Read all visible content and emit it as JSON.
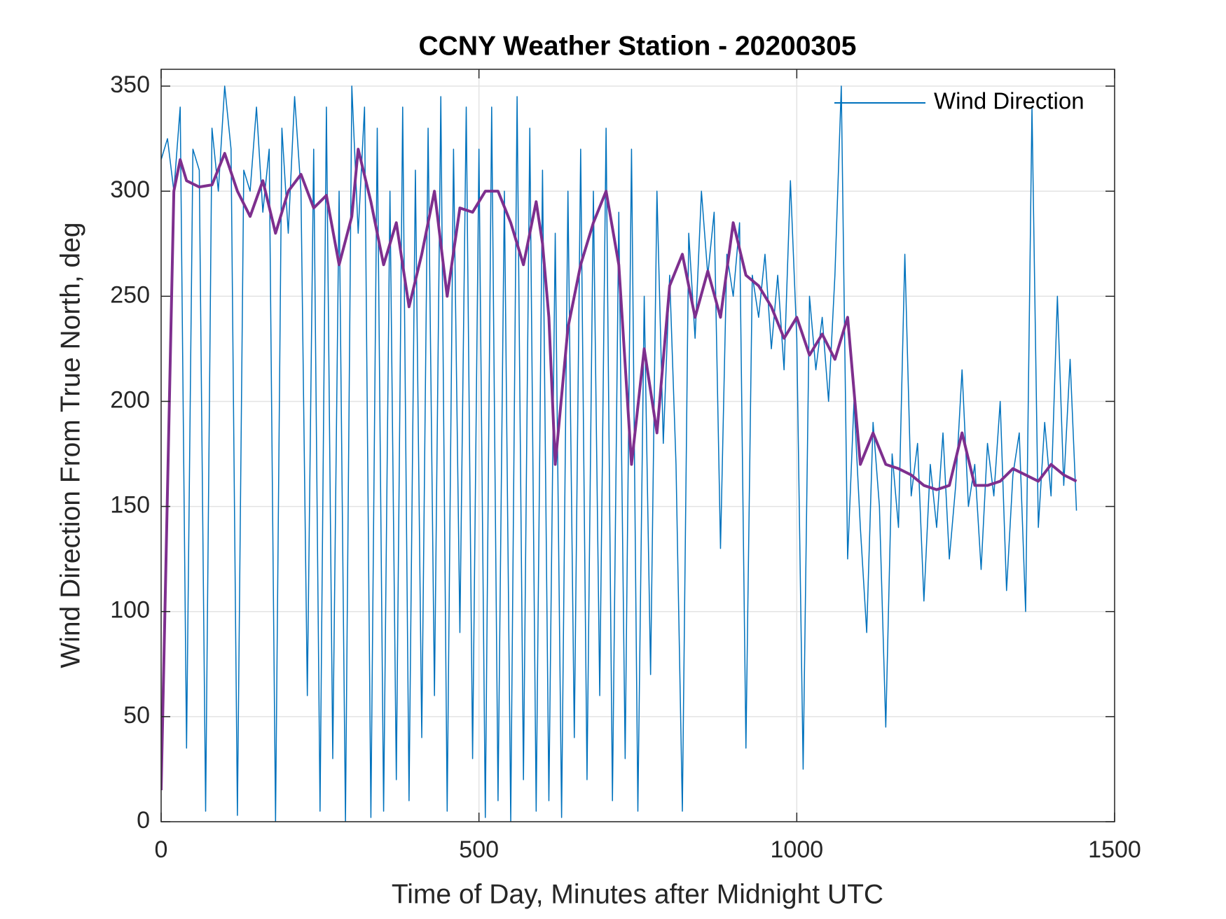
{
  "chart_data": {
    "type": "line",
    "title": "CCNY Weather Station - 20200305",
    "x_label": "Time of Day, Minutes after Midnight UTC",
    "y_label": "Wind Direction From True North, deg",
    "xlim": [
      0,
      1500
    ],
    "xticks": [
      0,
      500,
      1000,
      1500
    ],
    "ylim": [
      0,
      358
    ],
    "yticks": [
      0,
      50,
      100,
      150,
      200,
      250,
      300,
      350
    ],
    "grid": true,
    "legend_position": "upper right",
    "series": [
      {
        "name": "Wind Direction",
        "color": "#0072bd",
        "line_width": 1.5,
        "x": [
          0,
          10,
          20,
          30,
          40,
          50,
          60,
          70,
          80,
          90,
          100,
          110,
          120,
          130,
          140,
          150,
          160,
          170,
          180,
          190,
          200,
          210,
          220,
          230,
          240,
          250,
          260,
          270,
          280,
          290,
          300,
          310,
          320,
          330,
          340,
          350,
          360,
          370,
          380,
          390,
          400,
          410,
          420,
          430,
          440,
          450,
          460,
          470,
          480,
          490,
          500,
          510,
          520,
          530,
          540,
          550,
          560,
          570,
          580,
          590,
          600,
          610,
          620,
          630,
          640,
          650,
          660,
          670,
          680,
          690,
          700,
          710,
          720,
          730,
          740,
          750,
          760,
          770,
          780,
          790,
          800,
          810,
          820,
          830,
          840,
          850,
          860,
          870,
          880,
          890,
          900,
          910,
          920,
          930,
          940,
          950,
          960,
          970,
          980,
          990,
          1000,
          1010,
          1020,
          1030,
          1040,
          1050,
          1060,
          1070,
          1080,
          1090,
          1100,
          1110,
          1120,
          1130,
          1140,
          1150,
          1160,
          1170,
          1180,
          1190,
          1200,
          1210,
          1220,
          1230,
          1240,
          1250,
          1260,
          1270,
          1280,
          1290,
          1300,
          1310,
          1320,
          1330,
          1340,
          1350,
          1360,
          1370,
          1380,
          1390,
          1400,
          1410,
          1420,
          1430,
          1440
        ],
        "values": [
          315,
          325,
          300,
          340,
          35,
          320,
          310,
          5,
          330,
          300,
          350,
          320,
          3,
          310,
          300,
          340,
          290,
          320,
          0,
          330,
          280,
          345,
          300,
          60,
          320,
          5,
          340,
          30,
          300,
          0,
          350,
          280,
          340,
          2,
          330,
          5,
          300,
          20,
          340,
          10,
          310,
          40,
          330,
          60,
          345,
          5,
          320,
          90,
          340,
          30,
          320,
          2,
          340,
          10,
          300,
          0,
          345,
          20,
          330,
          5,
          310,
          10,
          280,
          2,
          300,
          40,
          320,
          20,
          300,
          60,
          330,
          10,
          290,
          30,
          320,
          5,
          250,
          70,
          300,
          180,
          260,
          170,
          5,
          280,
          230,
          300,
          260,
          290,
          130,
          270,
          250,
          285,
          35,
          260,
          240,
          270,
          225,
          260,
          215,
          305,
          230,
          25,
          250,
          215,
          240,
          200,
          260,
          350,
          125,
          200,
          140,
          90,
          190,
          150,
          45,
          175,
          140,
          270,
          155,
          180,
          105,
          170,
          140,
          185,
          125,
          160,
          215,
          150,
          170,
          120,
          180,
          155,
          200,
          110,
          165,
          185,
          100,
          340,
          140,
          190,
          155,
          250,
          160,
          220,
          148
        ]
      },
      {
        "color": "#7e2f8e",
        "line_width": 4,
        "x": [
          0,
          20,
          30,
          40,
          60,
          80,
          100,
          120,
          140,
          160,
          180,
          200,
          220,
          240,
          260,
          280,
          300,
          310,
          330,
          350,
          370,
          390,
          410,
          430,
          450,
          470,
          490,
          510,
          530,
          550,
          570,
          590,
          600,
          610,
          620,
          640,
          660,
          680,
          700,
          720,
          740,
          760,
          780,
          800,
          820,
          840,
          860,
          880,
          900,
          920,
          940,
          960,
          980,
          1000,
          1020,
          1040,
          1060,
          1080,
          1100,
          1120,
          1140,
          1160,
          1180,
          1200,
          1220,
          1240,
          1260,
          1280,
          1300,
          1320,
          1340,
          1360,
          1380,
          1400,
          1420,
          1440
        ],
        "values": [
          15,
          300,
          315,
          305,
          302,
          303,
          318,
          300,
          288,
          305,
          280,
          300,
          308,
          292,
          298,
          265,
          288,
          320,
          295,
          265,
          285,
          245,
          270,
          300,
          250,
          292,
          290,
          300,
          300,
          285,
          265,
          295,
          275,
          240,
          170,
          235,
          265,
          285,
          300,
          265,
          170,
          225,
          185,
          255,
          270,
          240,
          262,
          240,
          285,
          260,
          255,
          245,
          230,
          240,
          222,
          232,
          220,
          240,
          170,
          185,
          170,
          168,
          165,
          160,
          158,
          160,
          185,
          160,
          160,
          162,
          168,
          165,
          162,
          170,
          165,
          162
        ]
      }
    ]
  }
}
